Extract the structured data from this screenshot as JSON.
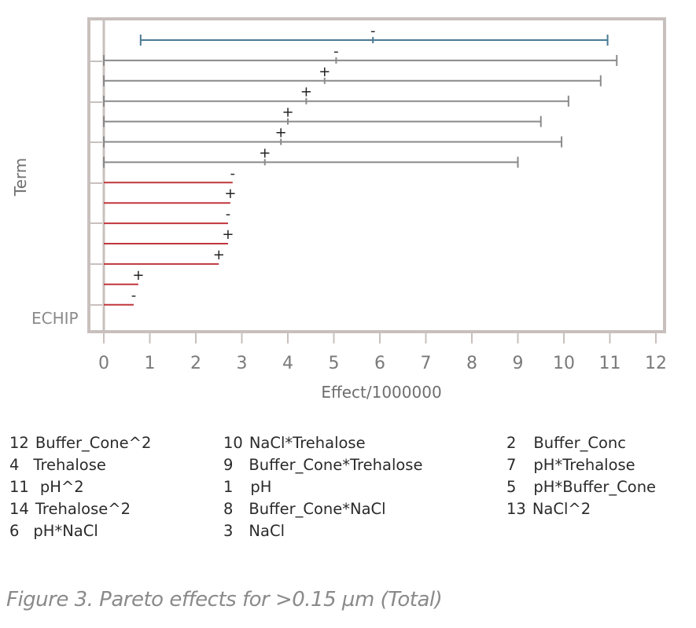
{
  "chart_data": {
    "type": "bar",
    "orientation": "horizontal",
    "xlabel": "Effect/1000000",
    "ylabel": "Term",
    "xlim": [
      0,
      12
    ],
    "xticks": [
      "0",
      "1",
      "2",
      "3",
      "4",
      "5",
      "6",
      "7",
      "8",
      "9",
      "10",
      "11",
      "12"
    ],
    "watermark": "ECHIP",
    "bars": [
      {
        "value": 5.85,
        "low": 0.8,
        "high": 10.95,
        "sign": "-",
        "color": "#4a7a95",
        "errorbar": true
      },
      {
        "value": 5.05,
        "low": 0.0,
        "high": 11.15,
        "sign": "-",
        "color": "#8a8a8a",
        "errorbar": true
      },
      {
        "value": 4.8,
        "low": 0.0,
        "high": 10.8,
        "sign": "+",
        "color": "#8a8a8a",
        "errorbar": true
      },
      {
        "value": 4.4,
        "low": 0.0,
        "high": 10.1,
        "sign": "+",
        "color": "#8a8a8a",
        "errorbar": true
      },
      {
        "value": 4.0,
        "low": 0.0,
        "high": 9.5,
        "sign": "+",
        "color": "#8a8a8a",
        "errorbar": true
      },
      {
        "value": 3.85,
        "low": 0.0,
        "high": 9.95,
        "sign": "+",
        "color": "#8a8a8a",
        "errorbar": true
      },
      {
        "value": 3.5,
        "low": 0.0,
        "high": 9.0,
        "sign": "+",
        "color": "#8a8a8a",
        "errorbar": true
      },
      {
        "value": 2.8,
        "sign": "-",
        "color": "#c0363c",
        "errorbar": false
      },
      {
        "value": 2.75,
        "sign": "+",
        "color": "#c0363c",
        "errorbar": false
      },
      {
        "value": 2.7,
        "sign": "-",
        "color": "#c0363c",
        "errorbar": false
      },
      {
        "value": 2.7,
        "sign": "+",
        "color": "#c0363c",
        "errorbar": false
      },
      {
        "value": 2.5,
        "sign": "+",
        "color": "#c0363c",
        "errorbar": false
      },
      {
        "value": 0.75,
        "sign": "+",
        "color": "#c0363c",
        "errorbar": false
      },
      {
        "value": 0.65,
        "sign": "-",
        "color": "#c0363c",
        "errorbar": false
      }
    ]
  },
  "legend": [
    {
      "num": "12",
      "name": "Buffer_Cone^2"
    },
    {
      "num": "4",
      "name": "Trehalose"
    },
    {
      "num": "11",
      "name": "pH^2"
    },
    {
      "num": "14",
      "name": "Trehalose^2"
    },
    {
      "num": "6",
      "name": "pH*NaCl"
    },
    {
      "num": "10",
      "name": "NaCl*Trehalose"
    },
    {
      "num": "9",
      "name": "Buffer_Cone*Trehalose"
    },
    {
      "num": "1",
      "name": "pH"
    },
    {
      "num": "8",
      "name": "Buffer_Cone*NaCl"
    },
    {
      "num": "3",
      "name": "NaCl"
    },
    {
      "num": "2",
      "name": "Buffer_Conc"
    },
    {
      "num": "7",
      "name": "pH*Trehalose"
    },
    {
      "num": "5",
      "name": "pH*Buffer_Cone"
    },
    {
      "num": "13",
      "name": "NaCl^2"
    }
  ],
  "caption": "Figure 3. Pareto effects for >0.15 µm (Total)"
}
